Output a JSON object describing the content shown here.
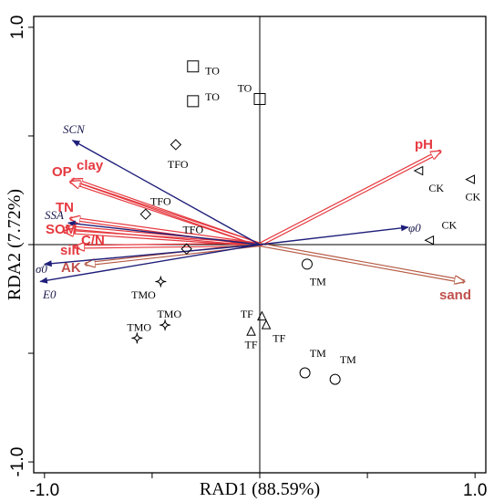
{
  "chart_data": {
    "type": "scatter",
    "subtype": "RDA biplot",
    "xlabel": "RAD1 (88.59%)",
    "ylabel": "RDA2 (7.72%)",
    "xlim": [
      -1.05,
      1.05
    ],
    "ylim": [
      -1.05,
      1.05
    ],
    "x_ticks": [
      {
        "value": -1.0,
        "label": "-1.0"
      },
      {
        "value": 1.0,
        "label": "1.0"
      }
    ],
    "y_ticks": [
      {
        "value": 1.0,
        "label": "1.0"
      },
      {
        "value": -1.0,
        "label": "-1.0"
      }
    ],
    "reference_lines": {
      "x": 0,
      "y": 0
    },
    "colors": {
      "red_arrow": "#e5393f",
      "brown_arrow": "#b65a44",
      "blue_arrow": "#1f1f7a",
      "frame": "#000000"
    },
    "env_vectors": [
      {
        "name": "pH",
        "x": 0.84,
        "y": 0.43,
        "color": "red"
      },
      {
        "name": "sand",
        "x": 0.95,
        "y": -0.17,
        "color": "brown"
      },
      {
        "name": "OP",
        "x": -0.87,
        "y": 0.3,
        "color": "red"
      },
      {
        "name": "clay",
        "x": -0.88,
        "y": 0.29,
        "color": "red"
      },
      {
        "name": "TN",
        "x": -0.88,
        "y": 0.12,
        "color": "red"
      },
      {
        "name": "SOM",
        "x": -0.9,
        "y": 0.08,
        "color": "red"
      },
      {
        "name": "C/N",
        "x": -0.91,
        "y": 0.06,
        "color": "red"
      },
      {
        "name": "silt",
        "x": -0.86,
        "y": -0.01,
        "color": "red"
      },
      {
        "name": "AK",
        "x": -0.81,
        "y": -0.09,
        "color": "brown"
      },
      {
        "name": "SCN",
        "x": -0.87,
        "y": 0.48,
        "color": "blue"
      },
      {
        "name": "SSA",
        "x": -0.89,
        "y": 0.1,
        "color": "blue"
      },
      {
        "name": "σ0",
        "x": -1.0,
        "y": -0.09,
        "color": "blue"
      },
      {
        "name": "E0",
        "x": -1.02,
        "y": -0.17,
        "color": "blue"
      },
      {
        "name": "φ0",
        "x": 0.69,
        "y": 0.08,
        "color": "blue"
      }
    ],
    "samples": [
      {
        "group": "TO",
        "marker": "square",
        "x": -0.31,
        "y": 0.82
      },
      {
        "group": "TO",
        "marker": "square",
        "x": -0.31,
        "y": 0.66
      },
      {
        "group": "TO",
        "marker": "square",
        "x": 0.0,
        "y": 0.67
      },
      {
        "group": "TFO",
        "marker": "diamond",
        "x": -0.39,
        "y": 0.46
      },
      {
        "group": "TFO",
        "marker": "diamond",
        "x": -0.53,
        "y": 0.14
      },
      {
        "group": "TFO",
        "marker": "diamond",
        "x": -0.34,
        "y": -0.02
      },
      {
        "group": "CK",
        "marker": "triangle-left",
        "x": 0.74,
        "y": 0.34
      },
      {
        "group": "CK",
        "marker": "triangle-left",
        "x": 0.98,
        "y": 0.3
      },
      {
        "group": "CK",
        "marker": "triangle-left",
        "x": 0.79,
        "y": 0.02
      },
      {
        "group": "TM",
        "marker": "circle",
        "x": 0.22,
        "y": -0.09
      },
      {
        "group": "TM",
        "marker": "circle",
        "x": 0.21,
        "y": -0.59
      },
      {
        "group": "TM",
        "marker": "circle",
        "x": 0.35,
        "y": -0.62
      },
      {
        "group": "TF",
        "marker": "triangle-up",
        "x": 0.01,
        "y": -0.33
      },
      {
        "group": "TF",
        "marker": "triangle-up",
        "x": 0.03,
        "y": -0.37
      },
      {
        "group": "TF",
        "marker": "triangle-up",
        "x": -0.04,
        "y": -0.4
      },
      {
        "group": "TMO",
        "marker": "star",
        "x": -0.46,
        "y": -0.17
      },
      {
        "group": "TMO",
        "marker": "star",
        "x": -0.44,
        "y": -0.37
      },
      {
        "group": "TMO",
        "marker": "star",
        "x": -0.57,
        "y": -0.43
      }
    ],
    "site_labels": [
      {
        "text": "TO",
        "x": -0.22,
        "y": 0.8
      },
      {
        "text": "TO",
        "x": -0.22,
        "y": 0.68
      },
      {
        "text": "TO",
        "x": -0.07,
        "y": 0.72
      },
      {
        "text": "TFO",
        "x": -0.38,
        "y": 0.37
      },
      {
        "text": "TFO",
        "x": -0.46,
        "y": 0.2
      },
      {
        "text": "TFO",
        "x": -0.31,
        "y": 0.07
      },
      {
        "text": "CK",
        "x": 0.82,
        "y": 0.26
      },
      {
        "text": "CK",
        "x": 0.99,
        "y": 0.22
      },
      {
        "text": "CK",
        "x": 0.88,
        "y": 0.09
      },
      {
        "text": "TM",
        "x": 0.27,
        "y": -0.17
      },
      {
        "text": "TM",
        "x": 0.27,
        "y": -0.5
      },
      {
        "text": "TM",
        "x": 0.41,
        "y": -0.53
      },
      {
        "text": "TF",
        "x": -0.06,
        "y": -0.32
      },
      {
        "text": "TF",
        "x": 0.09,
        "y": -0.43
      },
      {
        "text": "TF",
        "x": -0.04,
        "y": -0.46
      },
      {
        "text": "TMO",
        "x": -0.54,
        "y": -0.23
      },
      {
        "text": "TMO",
        "x": -0.42,
        "y": -0.32
      },
      {
        "text": "TMO",
        "x": -0.56,
        "y": -0.38
      }
    ]
  }
}
